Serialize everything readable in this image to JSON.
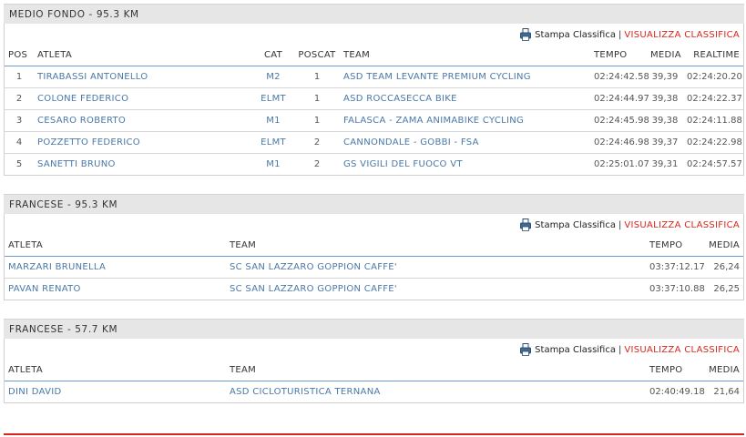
{
  "sections": [
    {
      "title": "MEDIO FONDO - 95.3 KM",
      "actions": {
        "print_label": "Stampa Classifica",
        "separator": "|",
        "view_label": "VISUALIZZA CLASSIFICA"
      },
      "headers": {
        "pos": "POS",
        "atleta": "ATLETA",
        "cat": "CAT",
        "poscat": "POSCAT",
        "team": "TEAM",
        "tempo": "TEMPO",
        "media": "MEDIA",
        "realtime": "REALTIME"
      },
      "rows": [
        {
          "pos": "1",
          "atleta": "TIRABASSI ANTONELLO",
          "cat": "M2",
          "poscat": "1",
          "team": "ASD TEAM LEVANTE PREMIUM CYCLING",
          "tempo": "02:24:42.58",
          "media": "39,39",
          "realtime": "02:24:20.20"
        },
        {
          "pos": "2",
          "atleta": "COLONE FEDERICO",
          "cat": "ELMT",
          "poscat": "1",
          "team": "ASD ROCCASECCA BIKE",
          "tempo": "02:24:44.97",
          "media": "39,38",
          "realtime": "02:24:22.37"
        },
        {
          "pos": "3",
          "atleta": "CESARO ROBERTO",
          "cat": "M1",
          "poscat": "1",
          "team": "FALASCA - ZAMA ANIMABIKE CYCLING",
          "tempo": "02:24:45.98",
          "media": "39,38",
          "realtime": "02:24:11.88"
        },
        {
          "pos": "4",
          "atleta": "POZZETTO FEDERICO",
          "cat": "ELMT",
          "poscat": "2",
          "team": "CANNONDALE - GOBBI - FSA",
          "tempo": "02:24:46.98",
          "media": "39,37",
          "realtime": "02:24:22.98"
        },
        {
          "pos": "5",
          "atleta": "SANETTI BRUNO",
          "cat": "M1",
          "poscat": "2",
          "team": "GS VIGILI DEL FUOCO VT",
          "tempo": "02:25:01.07",
          "media": "39,31",
          "realtime": "02:24:57.57"
        }
      ]
    },
    {
      "title": "FRANCESE - 95.3 KM",
      "actions": {
        "print_label": "Stampa Classifica",
        "separator": "|",
        "view_label": "VISUALIZZA CLASSIFICA"
      },
      "headers": {
        "atleta": "ATLETA",
        "team": "TEAM",
        "tempo": "TEMPO",
        "media": "MEDIA"
      },
      "rows": [
        {
          "atleta": "MARZARI BRUNELLA",
          "team": "SC SAN LAZZARO GOPPION CAFFE'",
          "tempo": "03:37:12.17",
          "media": "26,24"
        },
        {
          "atleta": "PAVAN RENATO",
          "team": "SC SAN LAZZARO GOPPION CAFFE'",
          "tempo": "03:37:10.88",
          "media": "26,25"
        }
      ]
    },
    {
      "title": "FRANCESE - 57.7 KM",
      "actions": {
        "print_label": "Stampa Classifica",
        "separator": "|",
        "view_label": "VISUALIZZA CLASSIFICA"
      },
      "headers": {
        "atleta": "ATLETA",
        "team": "TEAM",
        "tempo": "TEMPO",
        "media": "MEDIA"
      },
      "rows": [
        {
          "atleta": "DINI DAVID",
          "team": "ASD CICLOTURISTICA TERNANA",
          "tempo": "02:40:49.18",
          "media": "21,64"
        }
      ]
    }
  ],
  "colors": {
    "link": "#4a78a8",
    "accent_red": "#d9261c",
    "header_rule": "#6a9ed0",
    "section_bg": "#e6e6e6"
  },
  "icons": {
    "print": "printer-icon"
  }
}
